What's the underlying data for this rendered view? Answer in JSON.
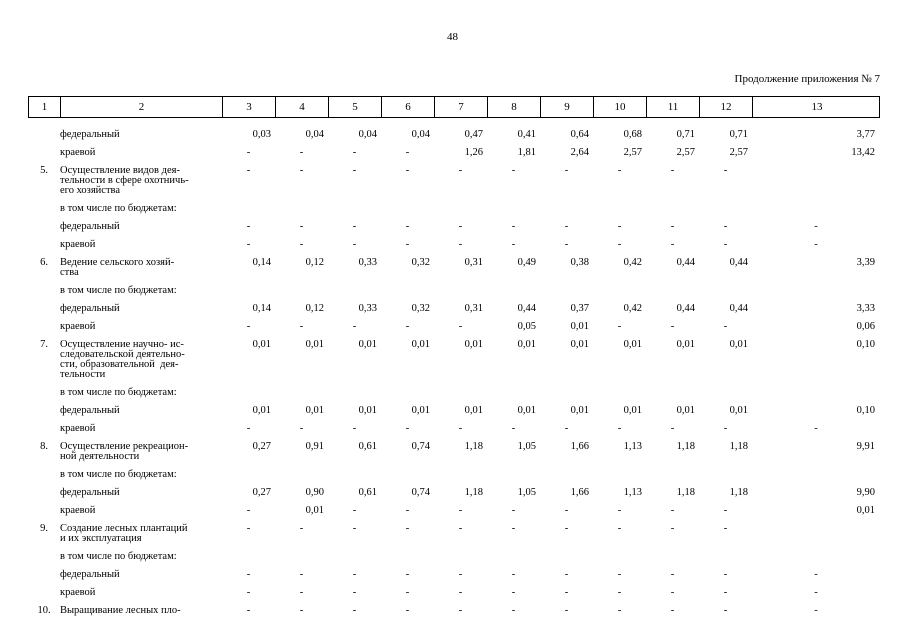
{
  "page": {
    "number": "48",
    "continuation_note": "Продолжение приложения № 7"
  },
  "table": {
    "header": [
      "1",
      "2",
      "3",
      "4",
      "5",
      "6",
      "7",
      "8",
      "9",
      "10",
      "11",
      "12",
      "13"
    ],
    "rows": [
      {
        "type": "sub",
        "label": "федеральный",
        "values": [
          "0,03",
          "0,04",
          "0,04",
          "0,04",
          "0,47",
          "0,41",
          "0,64",
          "0,68",
          "0,71",
          "0,71",
          "3,77"
        ]
      },
      {
        "type": "sub",
        "label": "краевой",
        "values": [
          "-",
          "-",
          "-",
          "-",
          "1,26",
          "1,81",
          "2,64",
          "2,57",
          "2,57",
          "2,57",
          "13,42"
        ]
      },
      {
        "type": "item",
        "num": "5.",
        "lines": [
          "Осуществление видов дея-",
          "тельности в сфере охотничь-",
          "его хозяйства"
        ],
        "values": [
          "-",
          "-",
          "-",
          "-",
          "-",
          "-",
          "-",
          "-",
          "-",
          "-",
          ""
        ]
      },
      {
        "type": "sub",
        "label": "в том числе по бюджетам:",
        "values": [
          "",
          "",
          "",
          "",
          "",
          "",
          "",
          "",
          "",
          "",
          ""
        ]
      },
      {
        "type": "sub",
        "label": "федеральный",
        "values": [
          "-",
          "-",
          "-",
          "-",
          "-",
          "-",
          "-",
          "-",
          "-",
          "-",
          "-"
        ]
      },
      {
        "type": "sub",
        "label": "краевой",
        "values": [
          "-",
          "-",
          "-",
          "-",
          "-",
          "-",
          "-",
          "-",
          "-",
          "-",
          "-"
        ]
      },
      {
        "type": "item",
        "num": "6.",
        "lines": [
          "Ведение сельского хозяй-",
          "ства"
        ],
        "values": [
          "0,14",
          "0,12",
          "0,33",
          "0,32",
          "0,31",
          "0,49",
          "0,38",
          "0,42",
          "0,44",
          "0,44",
          "3,39"
        ]
      },
      {
        "type": "sub",
        "label": "в том числе по бюджетам:",
        "values": [
          "",
          "",
          "",
          "",
          "",
          "",
          "",
          "",
          "",
          "",
          ""
        ]
      },
      {
        "type": "sub",
        "label": "федеральный",
        "values": [
          "0,14",
          "0,12",
          "0,33",
          "0,32",
          "0,31",
          "0,44",
          "0,37",
          "0,42",
          "0,44",
          "0,44",
          "3,33"
        ]
      },
      {
        "type": "sub",
        "label": "краевой",
        "values": [
          "-",
          "-",
          "-",
          "-",
          "-",
          "0,05",
          "0,01",
          "-",
          "-",
          "-",
          "0,06"
        ]
      },
      {
        "type": "item",
        "num": "7.",
        "lines": [
          "Осуществление научно- ис-",
          "следовательской деятельно-",
          "сти, образовательной  дея-",
          "тельности"
        ],
        "values": [
          "0,01",
          "0,01",
          "0,01",
          "0,01",
          "0,01",
          "0,01",
          "0,01",
          "0,01",
          "0,01",
          "0,01",
          "0,10"
        ]
      },
      {
        "type": "sub",
        "label": "в том числе по бюджетам:",
        "values": [
          "",
          "",
          "",
          "",
          "",
          "",
          "",
          "",
          "",
          "",
          ""
        ]
      },
      {
        "type": "sub",
        "label": "федеральный",
        "values": [
          "0,01",
          "0,01",
          "0,01",
          "0,01",
          "0,01",
          "0,01",
          "0,01",
          "0,01",
          "0,01",
          "0,01",
          "0,10"
        ]
      },
      {
        "type": "sub",
        "label": "краевой",
        "values": [
          "-",
          "-",
          "-",
          "-",
          "-",
          "-",
          "-",
          "-",
          "-",
          "-",
          "-"
        ]
      },
      {
        "type": "item",
        "num": "8.",
        "lines": [
          "Осуществление рекреацион-",
          "ной деятельности"
        ],
        "values": [
          "0,27",
          "0,91",
          "0,61",
          "0,74",
          "1,18",
          "1,05",
          "1,66",
          "1,13",
          "1,18",
          "1,18",
          "9,91"
        ]
      },
      {
        "type": "sub",
        "label": "в том числе по бюджетам:",
        "values": [
          "",
          "",
          "",
          "",
          "",
          "",
          "",
          "",
          "",
          "",
          ""
        ]
      },
      {
        "type": "sub",
        "label": "федеральный",
        "values": [
          "0,27",
          "0,90",
          "0,61",
          "0,74",
          "1,18",
          "1,05",
          "1,66",
          "1,13",
          "1,18",
          "1,18",
          "9,90"
        ]
      },
      {
        "type": "sub",
        "label": "краевой",
        "values": [
          "-",
          "0,01",
          "-",
          "-",
          "-",
          "-",
          "-",
          "-",
          "-",
          "-",
          "0,01"
        ]
      },
      {
        "type": "item",
        "num": "9.",
        "lines": [
          "Создание лесных плантаций",
          "и их эксплуатация"
        ],
        "values": [
          "-",
          "-",
          "-",
          "-",
          "-",
          "-",
          "-",
          "-",
          "-",
          "-",
          ""
        ]
      },
      {
        "type": "sub",
        "label": "в том числе по бюджетам:",
        "values": [
          "",
          "",
          "",
          "",
          "",
          "",
          "",
          "",
          "",
          "",
          ""
        ]
      },
      {
        "type": "sub",
        "label": "федеральный",
        "values": [
          "-",
          "-",
          "-",
          "-",
          "-",
          "-",
          "-",
          "-",
          "-",
          "-",
          "-"
        ]
      },
      {
        "type": "sub",
        "label": "краевой",
        "values": [
          "-",
          "-",
          "-",
          "-",
          "-",
          "-",
          "-",
          "-",
          "-",
          "-",
          "-"
        ]
      },
      {
        "type": "item",
        "num": "10.",
        "lines": [
          "Выращивание лесных пло-"
        ],
        "values": [
          "-",
          "-",
          "-",
          "-",
          "-",
          "-",
          "-",
          "-",
          "-",
          "-",
          "-"
        ]
      }
    ]
  }
}
